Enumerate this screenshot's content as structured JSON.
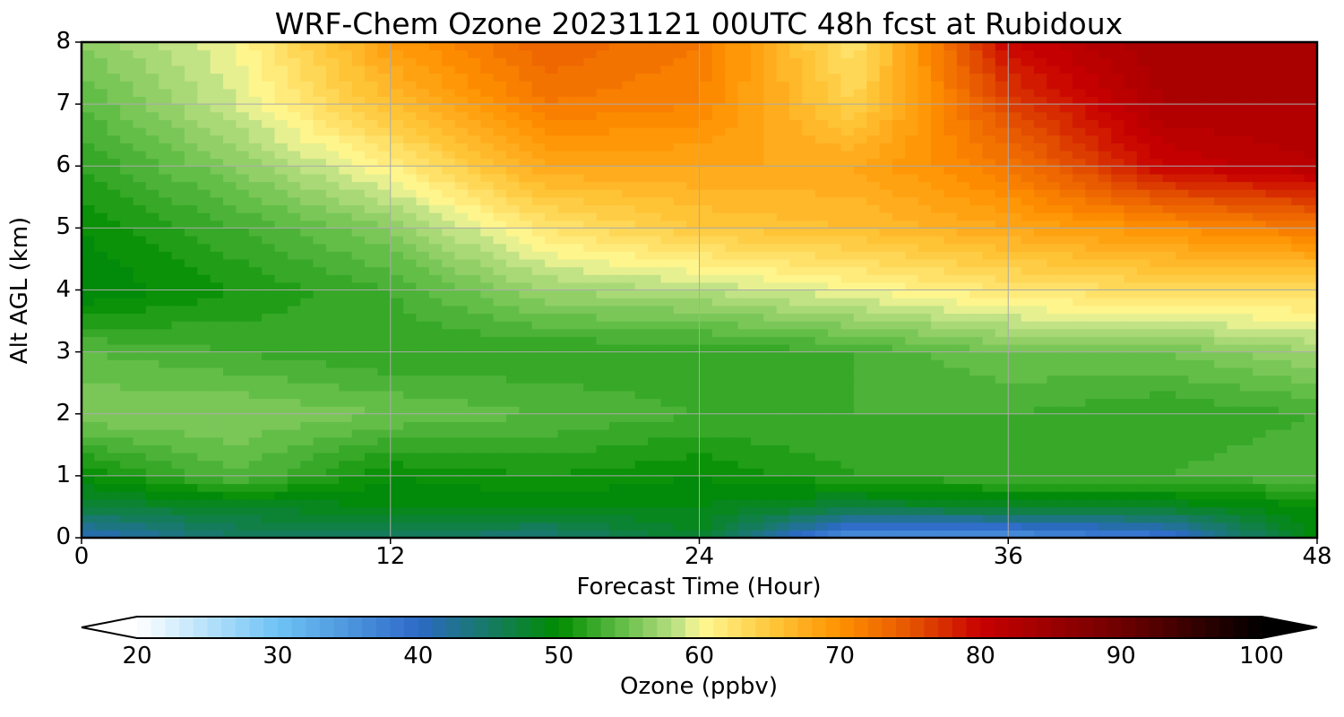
{
  "chart_data": {
    "type": "heatmap",
    "title": "WRF-Chem Ozone  20231121 00UTC 48h fcst at Rubidoux",
    "xlabel": "Forecast Time (Hour)",
    "ylabel": "Alt AGL (km)",
    "xlim": [
      0,
      48
    ],
    "ylim": [
      0,
      8
    ],
    "xticks": [
      "0",
      "12",
      "24",
      "36",
      "48"
    ],
    "yticks": [
      "0",
      "1",
      "2",
      "3",
      "4",
      "5",
      "6",
      "7",
      "8"
    ],
    "grid": true,
    "x": [
      0,
      6,
      12,
      18,
      24,
      30,
      36,
      42,
      48
    ],
    "y": [
      0,
      0.5,
      1,
      2,
      3,
      4,
      5,
      6,
      7,
      8
    ],
    "z": [
      [
        40,
        45,
        45,
        44,
        48,
        35,
        35,
        38,
        50
      ],
      [
        47,
        48,
        49,
        49,
        49,
        47,
        48,
        48,
        50
      ],
      [
        50,
        54,
        50,
        51,
        50,
        52,
        53,
        53,
        54
      ],
      [
        56,
        56,
        55,
        54,
        53,
        53,
        53,
        52,
        53
      ],
      [
        54,
        53,
        52,
        52,
        52,
        53,
        55,
        55,
        57
      ],
      [
        49,
        51,
        53,
        57,
        58,
        60,
        62,
        63,
        63
      ],
      [
        50,
        53,
        56,
        62,
        65,
        66,
        68,
        70,
        72
      ],
      [
        52,
        56,
        61,
        68,
        68,
        68,
        72,
        80,
        82
      ],
      [
        54,
        59,
        66,
        72,
        71,
        64,
        76,
        83,
        83
      ],
      [
        56,
        60,
        69,
        74,
        72,
        62,
        80,
        84,
        83
      ]
    ],
    "colorbar": {
      "label": "Ozone  (ppbv)",
      "min": 20,
      "max": 100,
      "ticks": [
        "20",
        "30",
        "40",
        "50",
        "60",
        "70",
        "80",
        "90",
        "100"
      ],
      "extend": "both",
      "levels_step": 1
    }
  }
}
